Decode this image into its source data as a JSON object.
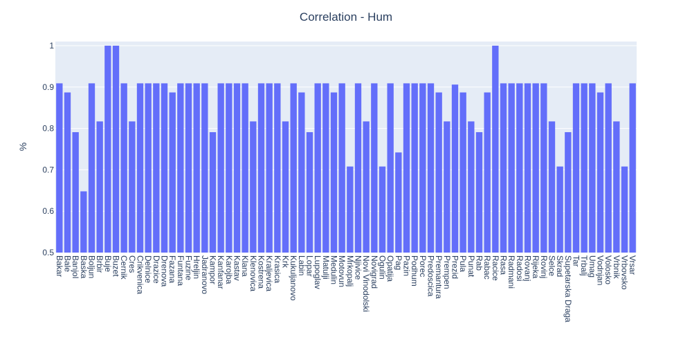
{
  "chart_data": {
    "type": "bar",
    "title": "Correlation - Hum",
    "xlabel": "",
    "ylabel": "%",
    "ylim": [
      0.5,
      1.0
    ],
    "yticks": [
      "0.5",
      "0.6",
      "0.7",
      "0.8",
      "0.9",
      "1"
    ],
    "grid": true,
    "colors": {
      "bar": "#636efa",
      "plot_bg": "#e5ecf6",
      "text": "#2a3f5f"
    },
    "categories": [
      "Bakar",
      "Bale",
      "Banjol",
      "Baska",
      "Boljun",
      "Brbir",
      "Buje",
      "Buzet",
      "Cernik",
      "Cres",
      "Crikvenica",
      "Delnice",
      "Drazice",
      "Drenova",
      "Fazana",
      "Funtana",
      "Fuzine",
      "Hreljin",
      "Jadranovo",
      "Kampor",
      "Kanfanar",
      "Karojba",
      "Kastav",
      "Klana",
      "Klenovica",
      "Kostrena",
      "Kraljevica",
      "Krasica",
      "Krk",
      "Kukuljanovo",
      "Labin",
      "Lopar",
      "Lupoglav",
      "Matulji",
      "Medulin",
      "Motovun",
      "Mrkopalj",
      "Njivice",
      "Novi Vinodolski",
      "Novigrad",
      "Ogulin",
      "Opatija",
      "Pag",
      "Pazin",
      "Podhum",
      "Porec",
      "Predoscica",
      "Premantura",
      "Prempen",
      "Prezid",
      "Pula",
      "Punat",
      "Rab",
      "Rabac",
      "Racice",
      "Rasa",
      "Radmani",
      "Radosi",
      "Rovanj",
      "Rijeka",
      "Rovinj",
      "Selce",
      "Skrad",
      "Supetarska Draga",
      "Tar",
      "Trbalj",
      "Umag",
      "Vodnjan",
      "Volosko",
      "Vrbnik",
      "Vrbovsko",
      "Vrsar"
    ],
    "values": [
      0.909,
      0.887,
      0.791,
      0.648,
      0.909,
      0.817,
      1.0,
      1.0,
      0.909,
      0.817,
      0.909,
      0.909,
      0.909,
      0.909,
      0.887,
      0.909,
      0.909,
      0.909,
      0.909,
      0.791,
      0.909,
      0.909,
      0.909,
      0.909,
      0.817,
      0.909,
      0.909,
      0.909,
      0.817,
      0.909,
      0.887,
      0.791,
      0.909,
      0.909,
      0.887,
      0.909,
      0.708,
      0.909,
      0.817,
      0.909,
      0.708,
      0.909,
      0.742,
      0.909,
      0.909,
      0.909,
      0.909,
      0.887,
      0.817,
      0.906,
      0.887,
      0.817,
      0.791,
      0.887,
      1.0,
      0.909,
      0.909,
      0.909,
      0.909,
      0.909,
      0.909,
      0.817,
      0.708,
      0.791,
      0.909,
      0.909,
      0.909,
      0.887,
      0.909,
      0.817,
      0.708,
      0.909
    ]
  }
}
